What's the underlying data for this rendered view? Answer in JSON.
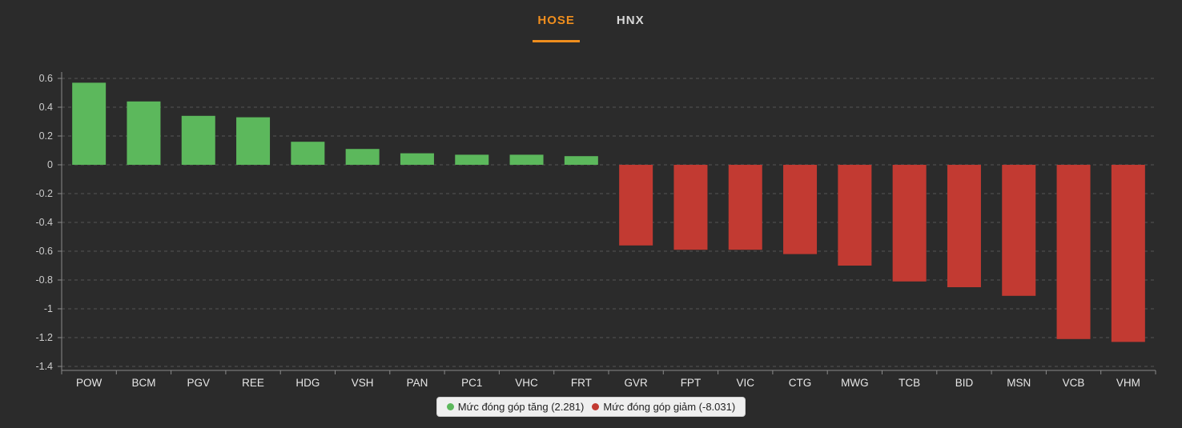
{
  "tabs": [
    {
      "label": "HOSE",
      "active": true
    },
    {
      "label": "HNX",
      "active": false
    }
  ],
  "colors": {
    "background": "#2b2b2b",
    "accent": "#ef8e1e",
    "positive": "#5cb85c",
    "negative": "#c23a32",
    "grid": "#555555",
    "axis": "#8a8a8a",
    "tick_label": "#cccccc",
    "category_label": "#e6e6e6"
  },
  "legend": {
    "up_label": "Mức đóng góp tăng (2.281)",
    "down_label": "Mức đóng góp giảm (-8.031)"
  },
  "chart_data": {
    "type": "bar",
    "title": "",
    "xlabel": "",
    "ylabel": "",
    "categories": [
      "POW",
      "BCM",
      "PGV",
      "REE",
      "HDG",
      "VSH",
      "PAN",
      "PC1",
      "VHC",
      "FRT",
      "GVR",
      "FPT",
      "VIC",
      "CTG",
      "MWG",
      "TCB",
      "BID",
      "MSN",
      "VCB",
      "VHM"
    ],
    "values": [
      0.57,
      0.44,
      0.34,
      0.33,
      0.16,
      0.11,
      0.08,
      0.07,
      0.07,
      0.06,
      -0.56,
      -0.59,
      -0.59,
      -0.62,
      -0.7,
      -0.81,
      -0.85,
      -0.91,
      -1.21,
      -1.23
    ],
    "ylim": [
      -1.4,
      0.6
    ],
    "yticks": [
      0.6,
      0.4,
      0.2,
      0,
      -0.2,
      -0.4,
      -0.6,
      -0.8,
      -1,
      -1.2,
      -1.4
    ],
    "grid": true,
    "grid_style": "dashed",
    "legend_position": "bottom",
    "series_totals": {
      "up": 2.281,
      "down": -8.031
    }
  }
}
